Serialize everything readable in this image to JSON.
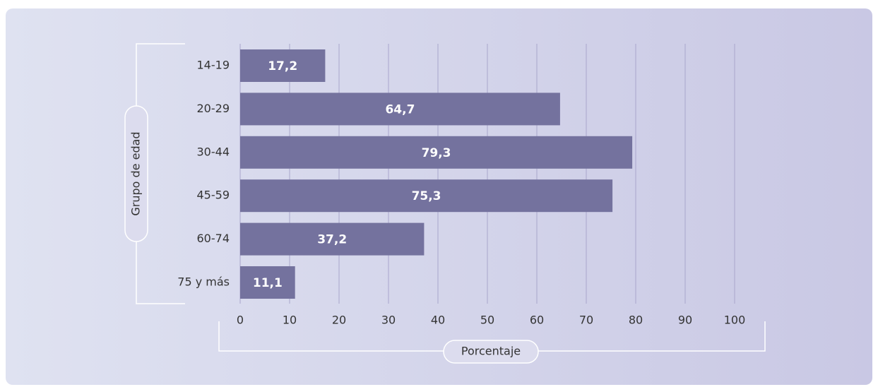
{
  "chart_data": {
    "type": "bar",
    "orientation": "horizontal",
    "categories": [
      "14-19",
      "20-29",
      "30-44",
      "45-59",
      "60-74",
      "75 y más"
    ],
    "values": [
      17.2,
      64.7,
      79.3,
      75.3,
      37.2,
      11.1
    ],
    "value_labels": [
      "17,2",
      "64,7",
      "79,3",
      "75,3",
      "37,2",
      "11,1"
    ],
    "color": "#74729e",
    "xlim": [
      0,
      100
    ],
    "xticks": [
      0,
      10,
      20,
      30,
      40,
      50,
      60,
      70,
      80,
      90,
      100
    ],
    "xlabel": "Porcentaje",
    "ylabel": "Grupo de edad",
    "grid": true
  }
}
